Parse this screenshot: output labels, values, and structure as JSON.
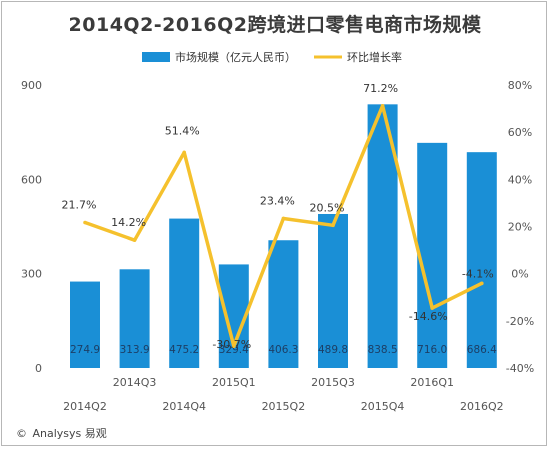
{
  "title": "2014Q2-2016Q2跨境进口零售电商市场规模",
  "legend": {
    "bar_label": "市场规模（亿元人民币）",
    "line_label": "环比增长率"
  },
  "footer": {
    "copyright_symbol": "©",
    "brand": "Analysys 易观"
  },
  "colors": {
    "bar": "#1a8fd6",
    "line": "#f5c12d",
    "axis_text": "#555555",
    "bar_label_text": "#1c3f66"
  },
  "chart_data": {
    "type": "bar",
    "categories": [
      "2014Q2",
      "2014Q3",
      "2014Q4",
      "2015Q1",
      "2015Q2",
      "2015Q3",
      "2015Q4",
      "2016Q1",
      "2016Q2"
    ],
    "series": [
      {
        "name": "市场规模（亿元人民币）",
        "type": "bar",
        "axis": "left",
        "values": [
          274.9,
          313.9,
          475.2,
          329.4,
          406.3,
          489.8,
          838.5,
          716.0,
          686.4
        ],
        "labels": [
          "274.9",
          "313.9",
          "475.2",
          "329.4",
          "406.3",
          "489.8",
          "838.5",
          "716.0",
          "686.4"
        ]
      },
      {
        "name": "环比增长率",
        "type": "line",
        "axis": "right",
        "values": [
          21.7,
          14.2,
          51.4,
          -30.7,
          23.4,
          20.5,
          71.2,
          -14.6,
          -4.1
        ],
        "labels": [
          "21.7%",
          "14.2%",
          "51.4%",
          "-30.7%",
          "23.4%",
          "20.5%",
          "71.2%",
          "-14.6%",
          "-4.1%"
        ]
      }
    ],
    "y_left": {
      "range": [
        0,
        900
      ],
      "ticks": [
        "0",
        "300",
        "600",
        "900"
      ]
    },
    "y_right": {
      "range": [
        -40,
        80
      ],
      "ticks": [
        "-40%",
        "-20%",
        "0%",
        "20%",
        "40%",
        "60%",
        "80%"
      ]
    },
    "legend_position": "top-center",
    "grid": false
  }
}
